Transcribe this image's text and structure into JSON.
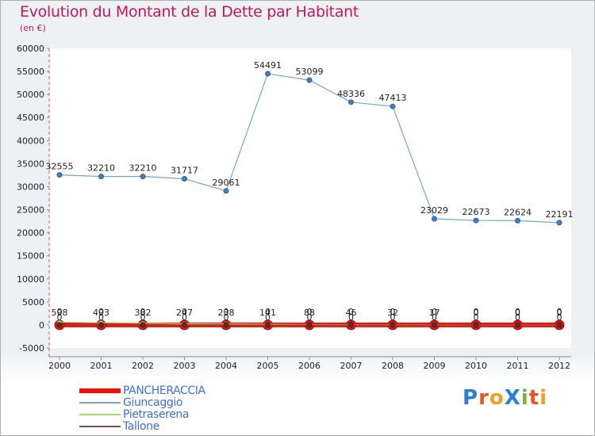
{
  "title": "Evolution du Montant de la Dette par Habitant",
  "subtitle": "(en €)",
  "logo": {
    "text": "ProXiti",
    "letters": [
      "P",
      "r",
      "o",
      "X",
      "i",
      "t",
      "i"
    ],
    "colors": [
      "#2a7fd4",
      "#e8552a",
      "#f0a020",
      "#2a7fd4",
      "#7cb342",
      "#e8552a",
      "#f0a020"
    ]
  },
  "chart_data": {
    "type": "line",
    "x": [
      2000,
      2001,
      2002,
      2003,
      2004,
      2005,
      2006,
      2007,
      2008,
      2009,
      2010,
      2011,
      2012
    ],
    "ylim": [
      -5000,
      60000
    ],
    "yticks": [
      -5000,
      0,
      5000,
      10000,
      15000,
      20000,
      25000,
      30000,
      35000,
      40000,
      45000,
      50000,
      55000,
      60000
    ],
    "grid": false,
    "legend_position": "bottom-left",
    "series": [
      {
        "name": "PANCHERACCIA",
        "color": "#e8140c",
        "values": [
          0,
          0,
          0,
          0,
          0,
          0,
          0,
          0,
          0,
          0,
          0,
          0,
          0
        ],
        "labels": [
          "0",
          "0",
          "0",
          "0",
          "0",
          "0",
          "0",
          "0",
          "0",
          "0",
          "0",
          "0",
          "0"
        ]
      },
      {
        "name": "Giuncaggio",
        "color": "#7aa3cc",
        "values": [
          32555,
          32210,
          32210,
          31717,
          29061,
          54491,
          53099,
          48336,
          47413,
          23029,
          22673,
          22624,
          22191
        ],
        "labels": [
          "32555",
          "32210",
          "32210",
          "31717",
          "29061",
          "54491",
          "53099",
          "48336",
          "47413",
          "23029",
          "22673",
          "22624",
          "22191"
        ]
      },
      {
        "name": "Pietraserena",
        "color": "#a6d86c",
        "values": [
          598,
          493,
          382,
          247,
          238,
          141,
          88,
          46,
          32,
          17,
          0,
          0,
          0
        ],
        "labels": [
          "598",
          "493",
          "382",
          "247",
          "238",
          "141",
          "88",
          "46",
          "32",
          "17",
          "0",
          "0",
          "0"
        ]
      },
      {
        "name": "Tallone",
        "color": "#8b4a4a",
        "values": [
          0,
          0,
          0,
          0,
          0,
          0,
          0,
          0,
          0,
          0,
          0,
          0,
          0
        ],
        "labels": [
          "0",
          "0",
          "0",
          "0",
          "0",
          "0",
          "0",
          "0",
          "0",
          "0",
          "0",
          "0",
          "0"
        ]
      }
    ]
  }
}
